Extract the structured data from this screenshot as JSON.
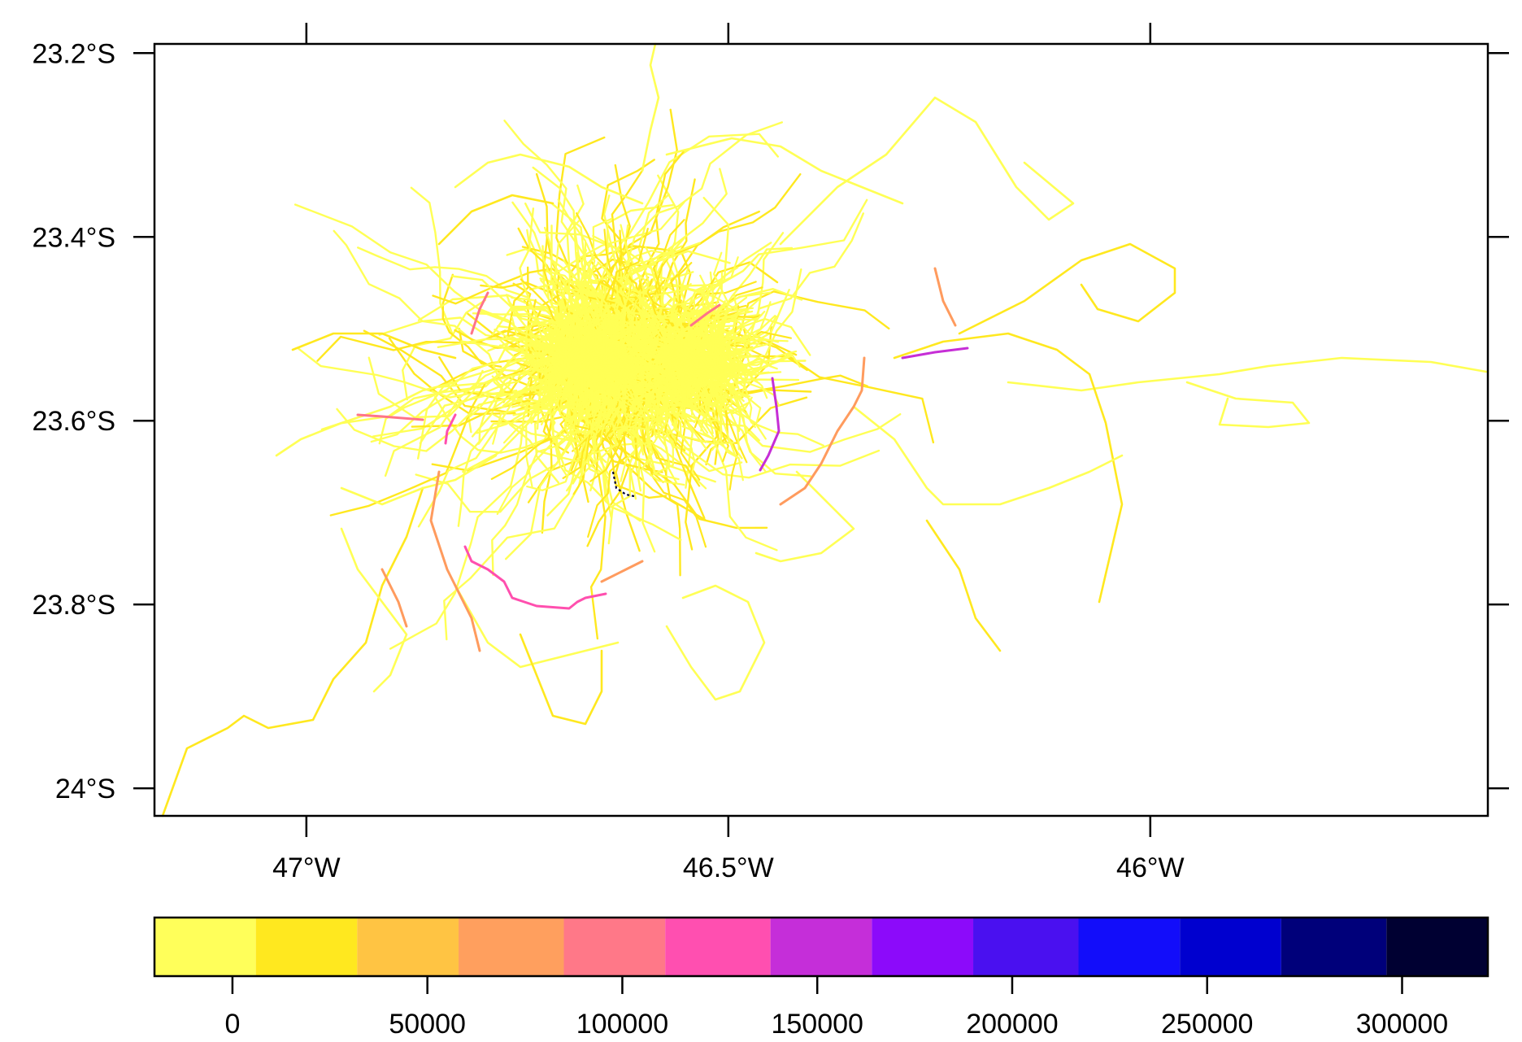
{
  "map": {
    "x_axis": {
      "ticks": [
        {
          "value": -47.0,
          "label": "47°W"
        },
        {
          "value": -46.5,
          "label": "46.5°W"
        },
        {
          "value": -46.0,
          "label": "46°W"
        }
      ],
      "range": [
        -47.18,
        -45.6
      ]
    },
    "y_axis": {
      "ticks": [
        {
          "value": -23.2,
          "label": "23.2°S"
        },
        {
          "value": -23.4,
          "label": "23.4°S"
        },
        {
          "value": -23.6,
          "label": "23.6°S"
        },
        {
          "value": -23.8,
          "label": "23.8°S"
        },
        {
          "value": -24.0,
          "label": "24°S"
        }
      ],
      "range": [
        -24.03,
        -23.19
      ]
    },
    "network_color": "#ffff55",
    "network_dark_color": "#ffe81f",
    "highlight_colors": [
      "#ff9b5e",
      "#ff7489",
      "#ff4fae",
      "#c62ed6"
    ]
  },
  "colorkey": {
    "range": [
      -20000,
      322000
    ],
    "bins": [
      {
        "from": -20000,
        "to": 6000,
        "color": "#ffff5a"
      },
      {
        "from": 6000,
        "to": 32000,
        "color": "#ffe81f"
      },
      {
        "from": 32000,
        "to": 58000,
        "color": "#ffc443"
      },
      {
        "from": 58000,
        "to": 85000,
        "color": "#ff9f5e"
      },
      {
        "from": 85000,
        "to": 111000,
        "color": "#ff7888"
      },
      {
        "from": 111000,
        "to": 138000,
        "color": "#ff4fb0"
      },
      {
        "from": 138000,
        "to": 164000,
        "color": "#c52ed9"
      },
      {
        "from": 164000,
        "to": 190000,
        "color": "#8c0afa"
      },
      {
        "from": 190000,
        "to": 217000,
        "color": "#4a10f0"
      },
      {
        "from": 217000,
        "to": 243000,
        "color": "#120dfa"
      },
      {
        "from": 243000,
        "to": 269000,
        "color": "#0000cf"
      },
      {
        "from": 269000,
        "to": 296000,
        "color": "#00007a"
      },
      {
        "from": 296000,
        "to": 322000,
        "color": "#000032"
      }
    ],
    "ticks": [
      {
        "value": 0,
        "label": "0"
      },
      {
        "value": 50000,
        "label": "50000"
      },
      {
        "value": 100000,
        "label": "100000"
      },
      {
        "value": 150000,
        "label": "150000"
      },
      {
        "value": 200000,
        "label": "200000"
      },
      {
        "value": 250000,
        "label": "250000"
      },
      {
        "value": 300000,
        "label": "300000"
      }
    ]
  }
}
